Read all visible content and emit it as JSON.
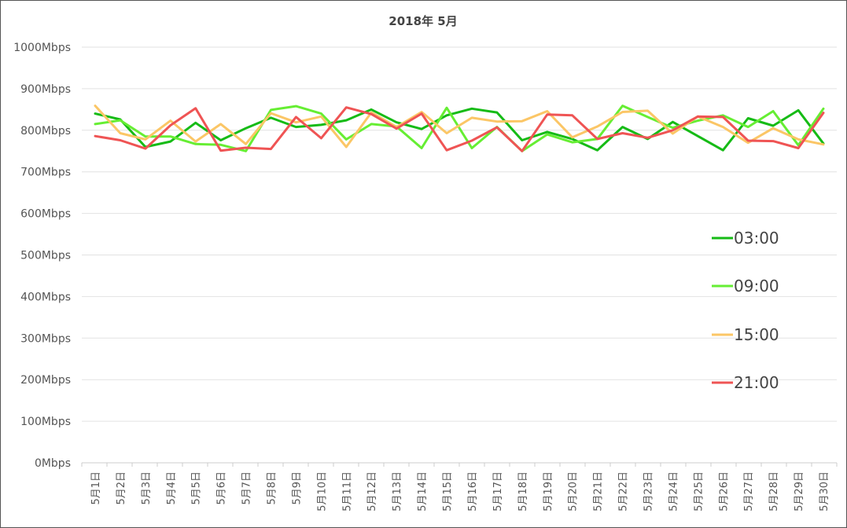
{
  "chart_data": {
    "type": "line",
    "title": "2018年 5月",
    "xlabel": "",
    "ylabel": "",
    "ylim": [
      0,
      1000
    ],
    "y_ticks": [
      "0Mbps",
      "100Mbps",
      "200Mbps",
      "300Mbps",
      "400Mbps",
      "500Mbps",
      "600Mbps",
      "700Mbps",
      "800Mbps",
      "900Mbps",
      "1000Mbps"
    ],
    "categories": [
      "5月1日",
      "5月2日",
      "5月3日",
      "5月4日",
      "5月5日",
      "5月6日",
      "5月7日",
      "5月8日",
      "5月9日",
      "5月10日",
      "5月11日",
      "5月12日",
      "5月13日",
      "5月14日",
      "5月15日",
      "5月16日",
      "5月17日",
      "5月18日",
      "5月19日",
      "5月20日",
      "5月21日",
      "5月22日",
      "5月23日",
      "5月24日",
      "5月25日",
      "5月26日",
      "5月27日",
      "5月28日",
      "5月29日",
      "5月30日"
    ],
    "grid": true,
    "legend_position": "right",
    "series": [
      {
        "name": "03:00",
        "color": "#16bb16",
        "values": [
          840,
          826,
          760,
          773,
          818,
          776,
          805,
          830,
          808,
          813,
          824,
          850,
          819,
          803,
          836,
          852,
          843,
          776,
          796,
          779,
          752,
          808,
          779,
          820,
          786,
          752,
          829,
          811,
          848,
          768
        ]
      },
      {
        "name": "09:00",
        "color": "#66ee33",
        "values": [
          815,
          824,
          785,
          785,
          767,
          765,
          750,
          849,
          858,
          840,
          778,
          815,
          809,
          757,
          854,
          757,
          808,
          750,
          790,
          771,
          779,
          859,
          832,
          806,
          823,
          836,
          808,
          846,
          764,
          852
        ]
      },
      {
        "name": "15:00",
        "color": "#fbc666",
        "values": [
          859,
          793,
          778,
          823,
          773,
          815,
          767,
          841,
          819,
          833,
          760,
          843,
          808,
          844,
          793,
          830,
          821,
          822,
          846,
          783,
          809,
          844,
          847,
          792,
          833,
          808,
          770,
          805,
          778,
          766
        ]
      },
      {
        "name": "21:00",
        "color": "#ef5454",
        "values": [
          786,
          776,
          756,
          812,
          853,
          751,
          758,
          755,
          832,
          781,
          855,
          839,
          804,
          840,
          752,
          775,
          807,
          750,
          838,
          836,
          779,
          793,
          782,
          800,
          833,
          832,
          775,
          774,
          757,
          842
        ]
      }
    ]
  }
}
